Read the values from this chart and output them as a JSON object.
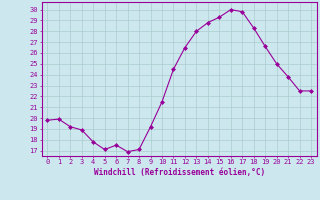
{
  "x": [
    0,
    1,
    2,
    3,
    4,
    5,
    6,
    7,
    8,
    9,
    10,
    11,
    12,
    13,
    14,
    15,
    16,
    17,
    18,
    19,
    20,
    21,
    22,
    23
  ],
  "y": [
    19.8,
    19.9,
    19.2,
    18.9,
    17.8,
    17.1,
    17.5,
    16.9,
    17.1,
    19.2,
    21.5,
    24.5,
    26.5,
    28.0,
    28.8,
    29.3,
    30.0,
    29.8,
    28.3,
    26.6,
    25.0,
    23.8,
    22.5,
    22.5
  ],
  "line_color": "#990099",
  "marker": "D",
  "marker_size": 2.0,
  "bg_color": "#cce8ee",
  "grid_color": "#aacccc",
  "ylabel_ticks": [
    17,
    18,
    19,
    20,
    21,
    22,
    23,
    24,
    25,
    26,
    27,
    28,
    29,
    30
  ],
  "ylim": [
    16.5,
    30.7
  ],
  "xlim": [
    -0.5,
    23.5
  ],
  "xlabel": "Windchill (Refroidissement éolien,°C)",
  "xlabel_color": "#990099",
  "tick_color": "#990099",
  "axis_color": "#990099",
  "tick_fontsize": 5.0,
  "xlabel_fontsize": 5.5
}
